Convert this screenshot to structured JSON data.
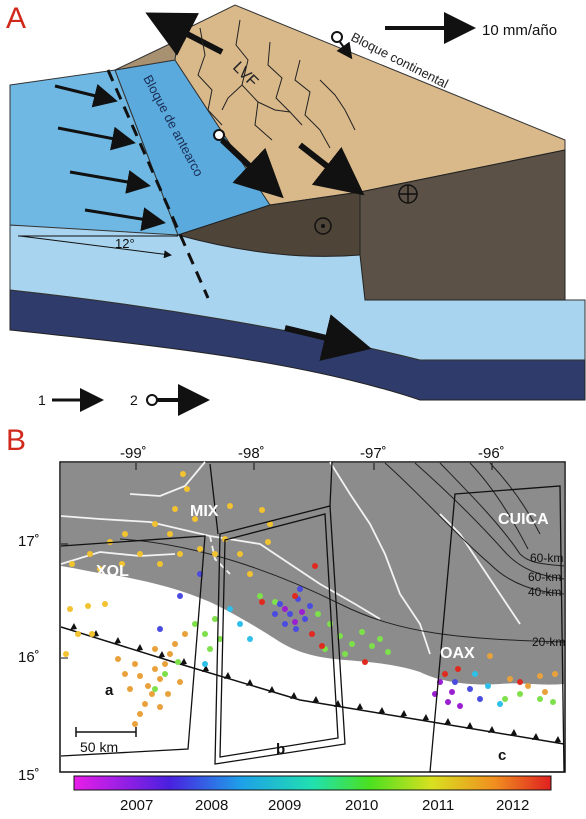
{
  "panel_a": {
    "letter": "A",
    "scale_label": "10 mm/año",
    "continental_block": "Bloque continental",
    "forearc_block": "Bloque de antearco",
    "fault_label": "LVF",
    "angle_label": "12°",
    "legend_1": "1",
    "legend_2": "2"
  },
  "panel_b": {
    "letter": "B",
    "lon_ticks": [
      "-99˚",
      "-98˚",
      "-97˚",
      "-96˚"
    ],
    "lat_ticks": [
      "17˚",
      "16˚",
      "15˚"
    ],
    "regions": {
      "mix": "MIX",
      "xol": "XOL",
      "oax": "OAX",
      "cuica": "CUICA"
    },
    "contours": [
      "60-km",
      "60-km",
      "40-km",
      "20-km"
    ],
    "boxes": [
      "a",
      "b",
      "c"
    ],
    "scale_bar": "50 km",
    "colorbar_ticks": [
      "2007",
      "2008",
      "2009",
      "2010",
      "2011",
      "2012"
    ]
  }
}
